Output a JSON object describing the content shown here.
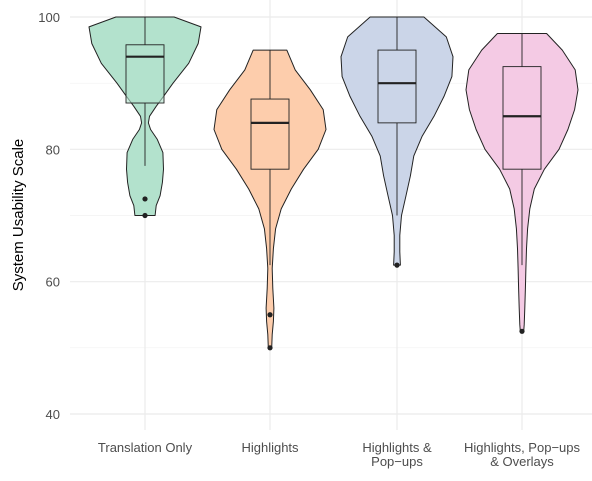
{
  "chart_data": {
    "type": "violin",
    "ylabel": "System Usability Scale",
    "xlabel": "",
    "ylim": [
      37,
      101
    ],
    "y_ticks": [
      40,
      60,
      80,
      100
    ],
    "grid": true,
    "legend": "none",
    "categories": [
      {
        "label_lines": [
          "Translation Only"
        ],
        "color": "#b3e2cd",
        "box": {
          "min": 77.5,
          "q1": 87,
          "median": 94,
          "q3": 95.8,
          "max": 100
        },
        "outliers": [
          72.5,
          70
        ],
        "violin_range": [
          70,
          100
        ],
        "density": [
          [
            100,
            0.52
          ],
          [
            98.5,
            1.0
          ],
          [
            96,
            0.95
          ],
          [
            93,
            0.78
          ],
          [
            90,
            0.5
          ],
          [
            88,
            0.33
          ],
          [
            86.5,
            0.2
          ],
          [
            85,
            0.08
          ],
          [
            84,
            0.06
          ],
          [
            83,
            0.1
          ],
          [
            81.5,
            0.22
          ],
          [
            79.5,
            0.32
          ],
          [
            77,
            0.33
          ],
          [
            75,
            0.31
          ],
          [
            73,
            0.27
          ],
          [
            71.5,
            0.2
          ],
          [
            70,
            0.18
          ]
        ]
      },
      {
        "label_lines": [
          "Highlights"
        ],
        "color": "#fdcdac",
        "box": {
          "min": 62.5,
          "q1": 77,
          "median": 84,
          "q3": 87.6,
          "max": 95
        },
        "outliers": [
          55,
          50
        ],
        "violin_range": [
          50,
          95
        ],
        "density": [
          [
            95,
            0.3
          ],
          [
            92,
            0.45
          ],
          [
            89,
            0.72
          ],
          [
            86,
            0.95
          ],
          [
            83,
            1.0
          ],
          [
            80,
            0.86
          ],
          [
            77,
            0.6
          ],
          [
            74,
            0.38
          ],
          [
            71,
            0.2
          ],
          [
            68,
            0.1
          ],
          [
            65,
            0.06
          ],
          [
            62,
            0.04
          ],
          [
            59,
            0.05
          ],
          [
            56,
            0.07
          ],
          [
            54,
            0.06
          ],
          [
            52,
            0.04
          ],
          [
            50,
            0.03
          ]
        ]
      },
      {
        "label_lines": [
          "Highlights &",
          "Pop−ups"
        ],
        "color": "#cbd5e8",
        "box": {
          "min": 70,
          "q1": 84,
          "median": 90,
          "q3": 95,
          "max": 100
        },
        "outliers": [
          62.5
        ],
        "violin_range": [
          62.5,
          100
        ],
        "density": [
          [
            100,
            0.48
          ],
          [
            97,
            0.88
          ],
          [
            94,
            1.0
          ],
          [
            91,
            0.98
          ],
          [
            88,
            0.84
          ],
          [
            85,
            0.66
          ],
          [
            82,
            0.45
          ],
          [
            79,
            0.3
          ],
          [
            76,
            0.24
          ],
          [
            73,
            0.16
          ],
          [
            70,
            0.08
          ],
          [
            67,
            0.05
          ],
          [
            64.5,
            0.05
          ],
          [
            62.5,
            0.06
          ]
        ]
      },
      {
        "label_lines": [
          "Highlights, Pop−ups",
          "& Overlays"
        ],
        "color": "#f4cae4",
        "box": {
          "min": 62.5,
          "q1": 77,
          "median": 85,
          "q3": 92.5,
          "max": 97.5
        },
        "outliers": [
          52.5
        ],
        "violin_range": [
          52.5,
          97.5
        ],
        "density": [
          [
            97.5,
            0.44
          ],
          [
            95,
            0.72
          ],
          [
            92,
            0.95
          ],
          [
            89,
            1.0
          ],
          [
            86,
            0.94
          ],
          [
            83,
            0.82
          ],
          [
            80,
            0.66
          ],
          [
            77,
            0.4
          ],
          [
            74,
            0.22
          ],
          [
            71,
            0.14
          ],
          [
            68,
            0.1
          ],
          [
            65,
            0.08
          ],
          [
            62,
            0.07
          ],
          [
            59,
            0.06
          ],
          [
            56,
            0.05
          ],
          [
            53.5,
            0.04
          ],
          [
            52.5,
            0.03
          ]
        ]
      }
    ]
  }
}
